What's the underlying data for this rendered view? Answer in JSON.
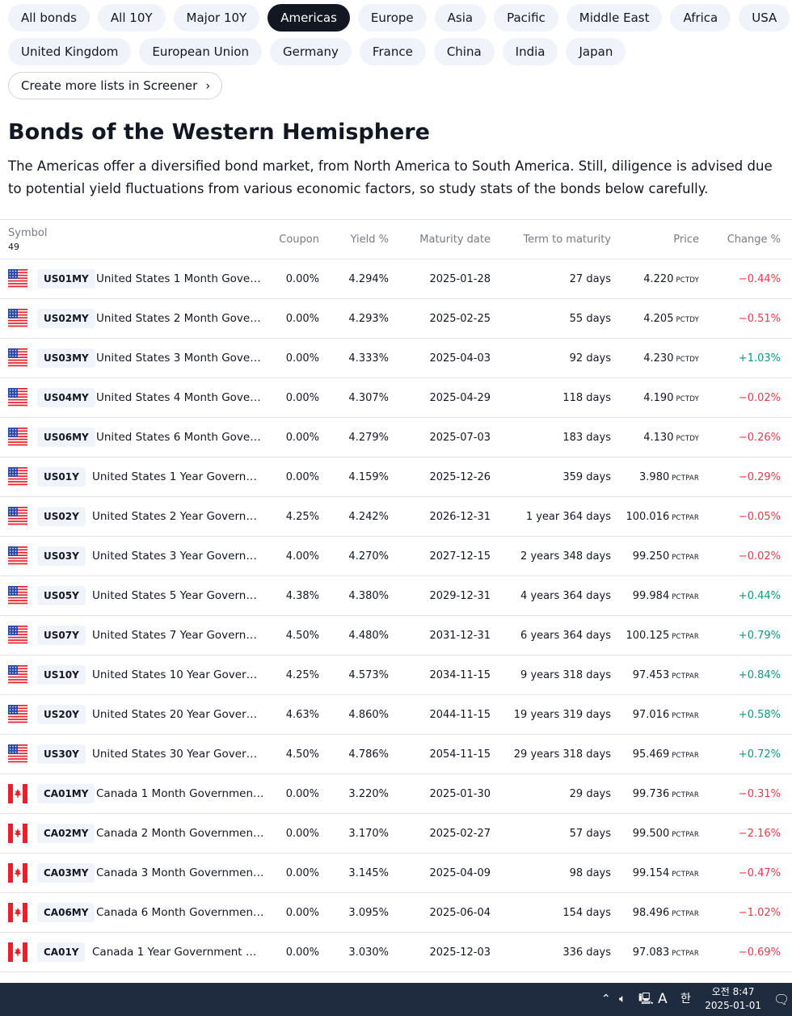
{
  "tabs_row1": [
    "All bonds",
    "All 10Y",
    "Major 10Y",
    "Americas",
    "Europe",
    "Asia",
    "Pacific",
    "Middle East",
    "Africa",
    "USA"
  ],
  "tabs_row2": [
    "United Kingdom",
    "European Union",
    "Germany",
    "France",
    "China",
    "India",
    "Japan"
  ],
  "active_tab": "Americas",
  "screener_button": "Create more lists in Screener",
  "title": "Bonds of the Western Hemisphere",
  "description": "The Americas offer a diversified bond market, from North America to South America. Still, diligence is advised due to potential yield fluctuations from various economic factors, so study stats of the bonds below carefully.",
  "table": {
    "symbol_header": "Symbol",
    "count": "49",
    "headers": {
      "coupon": "Coupon",
      "yield": "Yield %",
      "maturity": "Maturity date",
      "term": "Term to maturity",
      "price": "Price",
      "change": "Change %"
    },
    "rows": [
      {
        "flag": "us",
        "ticker": "US01MY",
        "name": "United States 1 Month Gove…",
        "coupon": "0.00%",
        "yield": "4.294%",
        "maturity": "2025-01-28",
        "term": "27 days",
        "price": "4.220",
        "unit": "PCTDY",
        "change": "−0.44%",
        "dir": "neg"
      },
      {
        "flag": "us",
        "ticker": "US02MY",
        "name": "United States 2 Month Gove…",
        "coupon": "0.00%",
        "yield": "4.293%",
        "maturity": "2025-02-25",
        "term": "55 days",
        "price": "4.205",
        "unit": "PCTDY",
        "change": "−0.51%",
        "dir": "neg"
      },
      {
        "flag": "us",
        "ticker": "US03MY",
        "name": "United States 3 Month Gove…",
        "coupon": "0.00%",
        "yield": "4.333%",
        "maturity": "2025-04-03",
        "term": "92 days",
        "price": "4.230",
        "unit": "PCTDY",
        "change": "+1.03%",
        "dir": "pos"
      },
      {
        "flag": "us",
        "ticker": "US04MY",
        "name": "United States 4 Month Gove…",
        "coupon": "0.00%",
        "yield": "4.307%",
        "maturity": "2025-04-29",
        "term": "118 days",
        "price": "4.190",
        "unit": "PCTDY",
        "change": "−0.02%",
        "dir": "neg"
      },
      {
        "flag": "us",
        "ticker": "US06MY",
        "name": "United States 6 Month Gove…",
        "coupon": "0.00%",
        "yield": "4.279%",
        "maturity": "2025-07-03",
        "term": "183 days",
        "price": "4.130",
        "unit": "PCTDY",
        "change": "−0.26%",
        "dir": "neg"
      },
      {
        "flag": "us",
        "ticker": "US01Y",
        "name": "United States 1 Year Govern…",
        "coupon": "0.00%",
        "yield": "4.159%",
        "maturity": "2025-12-26",
        "term": "359 days",
        "price": "3.980",
        "unit": "PCTPAR",
        "change": "−0.29%",
        "dir": "neg"
      },
      {
        "flag": "us",
        "ticker": "US02Y",
        "name": "United States 2 Year Govern…",
        "coupon": "4.25%",
        "yield": "4.242%",
        "maturity": "2026-12-31",
        "term": "1 year 364 days",
        "price": "100.016",
        "unit": "PCTPAR",
        "change": "−0.05%",
        "dir": "neg"
      },
      {
        "flag": "us",
        "ticker": "US03Y",
        "name": "United States 3 Year Govern…",
        "coupon": "4.00%",
        "yield": "4.270%",
        "maturity": "2027-12-15",
        "term": "2 years 348 days",
        "price": "99.250",
        "unit": "PCTPAR",
        "change": "−0.02%",
        "dir": "neg"
      },
      {
        "flag": "us",
        "ticker": "US05Y",
        "name": "United States 5 Year Govern…",
        "coupon": "4.38%",
        "yield": "4.380%",
        "maturity": "2029-12-31",
        "term": "4 years 364 days",
        "price": "99.984",
        "unit": "PCTPAR",
        "change": "+0.44%",
        "dir": "pos"
      },
      {
        "flag": "us",
        "ticker": "US07Y",
        "name": "United States 7 Year Govern…",
        "coupon": "4.50%",
        "yield": "4.480%",
        "maturity": "2031-12-31",
        "term": "6 years 364 days",
        "price": "100.125",
        "unit": "PCTPAR",
        "change": "+0.79%",
        "dir": "pos"
      },
      {
        "flag": "us",
        "ticker": "US10Y",
        "name": "United States 10 Year Gover…",
        "coupon": "4.25%",
        "yield": "4.573%",
        "maturity": "2034-11-15",
        "term": "9 years 318 days",
        "price": "97.453",
        "unit": "PCTPAR",
        "change": "+0.84%",
        "dir": "pos"
      },
      {
        "flag": "us",
        "ticker": "US20Y",
        "name": "United States 20 Year Gover…",
        "coupon": "4.63%",
        "yield": "4.860%",
        "maturity": "2044-11-15",
        "term": "19 years 319 days",
        "price": "97.016",
        "unit": "PCTPAR",
        "change": "+0.58%",
        "dir": "pos"
      },
      {
        "flag": "us",
        "ticker": "US30Y",
        "name": "United States 30 Year Gover…",
        "coupon": "4.50%",
        "yield": "4.786%",
        "maturity": "2054-11-15",
        "term": "29 years 318 days",
        "price": "95.469",
        "unit": "PCTPAR",
        "change": "+0.72%",
        "dir": "pos"
      },
      {
        "flag": "ca",
        "ticker": "CA01MY",
        "name": "Canada 1 Month Governmen…",
        "coupon": "0.00%",
        "yield": "3.220%",
        "maturity": "2025-01-30",
        "term": "29 days",
        "price": "99.736",
        "unit": "PCTPAR",
        "change": "−0.31%",
        "dir": "neg"
      },
      {
        "flag": "ca",
        "ticker": "CA02MY",
        "name": "Canada 2 Month Governmen…",
        "coupon": "0.00%",
        "yield": "3.170%",
        "maturity": "2025-02-27",
        "term": "57 days",
        "price": "99.500",
        "unit": "PCTPAR",
        "change": "−2.16%",
        "dir": "neg"
      },
      {
        "flag": "ca",
        "ticker": "CA03MY",
        "name": "Canada 3 Month Governmen…",
        "coupon": "0.00%",
        "yield": "3.145%",
        "maturity": "2025-04-09",
        "term": "98 days",
        "price": "99.154",
        "unit": "PCTPAR",
        "change": "−0.47%",
        "dir": "neg"
      },
      {
        "flag": "ca",
        "ticker": "CA06MY",
        "name": "Canada 6 Month Governmen…",
        "coupon": "0.00%",
        "yield": "3.095%",
        "maturity": "2025-06-04",
        "term": "154 days",
        "price": "98.496",
        "unit": "PCTPAR",
        "change": "−1.02%",
        "dir": "neg"
      },
      {
        "flag": "ca",
        "ticker": "CA01Y",
        "name": "Canada 1 Year Government …",
        "coupon": "0.00%",
        "yield": "3.030%",
        "maturity": "2025-12-03",
        "term": "336 days",
        "price": "97.083",
        "unit": "PCTPAR",
        "change": "−0.69%",
        "dir": "neg"
      }
    ]
  },
  "taskbar": {
    "ime_letter": "A",
    "ime_hangul": "한",
    "time": "오전 8:47",
    "date": "2025-01-01"
  }
}
